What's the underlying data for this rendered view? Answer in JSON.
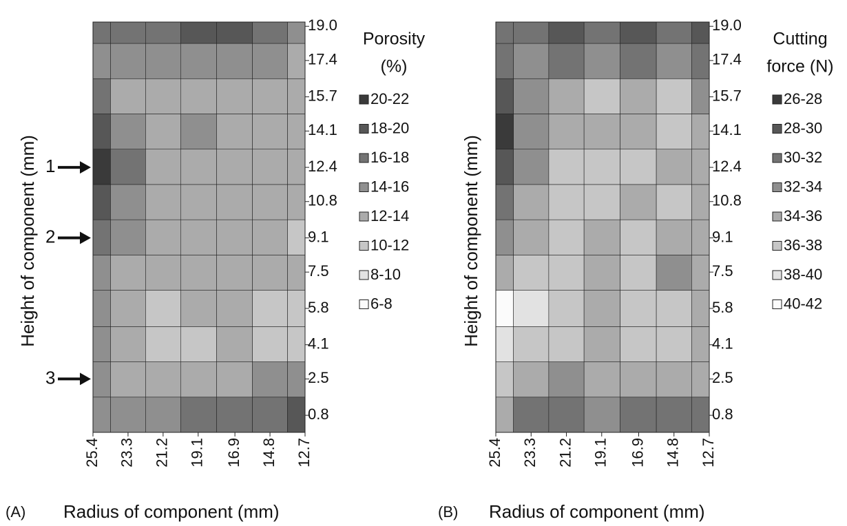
{
  "chart_data": [
    {
      "type": "contour",
      "panel": "(A)",
      "x_label": "Radius of component (mm)",
      "y_label": "Height of component (mm)",
      "legend_title": [
        "Porosity",
        "(%)"
      ],
      "bands": [
        {
          "label": "20-22",
          "range": [
            20,
            22
          ],
          "color": "#3a3a3a"
        },
        {
          "label": "18-20",
          "range": [
            18,
            20
          ],
          "color": "#575757"
        },
        {
          "label": "16-18",
          "range": [
            16,
            18
          ],
          "color": "#737373"
        },
        {
          "label": "14-16",
          "range": [
            14,
            16
          ],
          "color": "#8f8f8f"
        },
        {
          "label": "12-14",
          "range": [
            12,
            14
          ],
          "color": "#ababab"
        },
        {
          "label": "10-12",
          "range": [
            10,
            12
          ],
          "color": "#c6c6c6"
        },
        {
          "label": "8-10",
          "range": [
            8,
            10
          ],
          "color": "#e2e2e2"
        },
        {
          "label": "6-8",
          "range": [
            6,
            8
          ],
          "color": "#fbfbfb"
        }
      ],
      "x": [
        25.4,
        23.3,
        21.2,
        19.1,
        16.9,
        14.8,
        12.7
      ],
      "y": [
        0.8,
        2.5,
        4.1,
        5.8,
        7.5,
        9.1,
        10.8,
        12.4,
        14.1,
        15.7,
        17.4,
        19
      ],
      "z": [
        [
          15,
          15,
          15,
          17,
          17,
          17,
          19
        ],
        [
          14,
          13,
          13,
          13,
          13,
          15,
          15
        ],
        [
          14,
          13,
          11,
          11,
          13,
          11,
          11
        ],
        [
          14,
          13,
          11,
          13,
          13,
          11,
          11
        ],
        [
          15,
          13,
          13,
          13,
          13,
          13,
          13
        ],
        [
          17,
          14,
          13,
          13,
          13,
          13,
          11
        ],
        [
          19,
          15,
          13,
          13,
          13,
          13,
          13
        ],
        [
          21,
          16,
          13,
          13,
          13,
          13,
          13
        ],
        [
          19,
          15,
          13,
          14,
          13,
          13,
          13
        ],
        [
          17,
          13,
          13,
          13,
          13,
          13,
          13
        ],
        [
          15,
          15,
          14,
          15,
          15,
          15,
          13
        ],
        [
          16,
          16,
          17,
          19,
          19,
          17,
          15
        ]
      ],
      "xlim": [
        25.4,
        12.7
      ],
      "ylim": [
        0,
        19.2
      ],
      "xticks": [
        25.4,
        23.3,
        21.2,
        19.1,
        16.9,
        14.8,
        12.7
      ],
      "yticks": [
        0.8,
        2.5,
        4.1,
        5.8,
        7.5,
        9.1,
        10.8,
        12.4,
        14.1,
        15.7,
        17.4,
        {
          "value": 19,
          "label": "19.0"
        }
      ],
      "annotations": [
        {
          "text": "1",
          "y": 12.4
        },
        {
          "text": "2",
          "y": 9.1
        },
        {
          "text": "3",
          "y": 2.5
        }
      ]
    },
    {
      "type": "contour",
      "panel": "(B)",
      "x_label": "Radius of component (mm)",
      "y_label": "Height of component (mm)",
      "legend_title": [
        "Cutting",
        "force (N)"
      ],
      "bands": [
        {
          "label": "26-28",
          "range": [
            26,
            28
          ],
          "color": "#3a3a3a"
        },
        {
          "label": "28-30",
          "range": [
            28,
            30
          ],
          "color": "#575757"
        },
        {
          "label": "30-32",
          "range": [
            30,
            32
          ],
          "color": "#737373"
        },
        {
          "label": "32-34",
          "range": [
            32,
            34
          ],
          "color": "#8f8f8f"
        },
        {
          "label": "34-36",
          "range": [
            34,
            36
          ],
          "color": "#ababab"
        },
        {
          "label": "36-38",
          "range": [
            36,
            38
          ],
          "color": "#c6c6c6"
        },
        {
          "label": "38-40",
          "range": [
            38,
            40
          ],
          "color": "#e2e2e2"
        },
        {
          "label": "40-42",
          "range": [
            40,
            42
          ],
          "color": "#fbfbfb"
        }
      ],
      "x": [
        25.4,
        23.3,
        21.2,
        19.1,
        16.9,
        14.8,
        12.7
      ],
      "y": [
        0.8,
        2.5,
        4.1,
        5.8,
        7.5,
        9.1,
        10.8,
        12.4,
        14.1,
        15.7,
        17.4,
        19
      ],
      "z": [
        [
          35,
          31,
          31,
          33,
          31,
          31,
          31
        ],
        [
          37,
          35,
          33,
          35,
          35,
          35,
          35
        ],
        [
          39,
          37,
          37,
          35,
          37,
          37,
          35
        ],
        [
          41,
          39,
          37,
          35,
          37,
          37,
          35
        ],
        [
          35,
          37,
          37,
          35,
          37,
          33,
          35
        ],
        [
          33,
          35,
          37,
          35,
          37,
          35,
          35
        ],
        [
          31,
          35,
          37,
          37,
          35,
          37,
          35
        ],
        [
          29,
          33,
          37,
          37,
          37,
          35,
          35
        ],
        [
          27,
          33,
          35,
          35,
          35,
          37,
          35
        ],
        [
          29,
          33,
          35,
          37,
          35,
          37,
          33
        ],
        [
          31,
          33,
          31,
          33,
          31,
          33,
          31
        ],
        [
          31,
          31,
          29,
          31,
          29,
          31,
          29
        ]
      ],
      "xlim": [
        25.4,
        12.7
      ],
      "ylim": [
        0,
        19.2
      ],
      "xticks": [
        25.4,
        23.3,
        21.2,
        19.1,
        16.9,
        14.8,
        12.7
      ],
      "yticks": [
        0.8,
        2.5,
        4.1,
        5.8,
        7.5,
        9.1,
        10.8,
        12.4,
        14.1,
        15.7,
        17.4,
        {
          "value": 19,
          "label": "19.0"
        }
      ]
    }
  ]
}
